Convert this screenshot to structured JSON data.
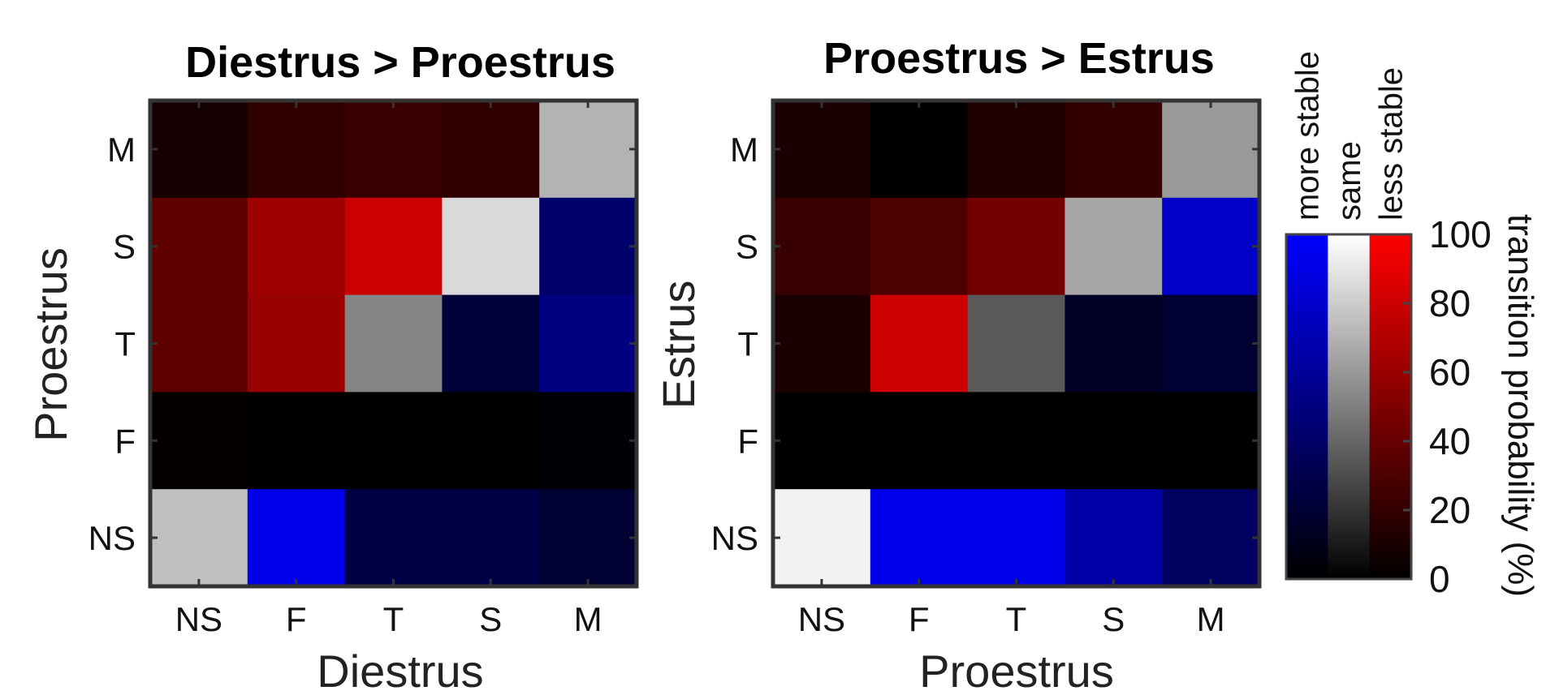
{
  "chart_data": [
    {
      "type": "heatmap",
      "title": "Diestrus > Proestrus",
      "xlabel": "Diestrus",
      "ylabel": "Proestrus",
      "x_categories": [
        "NS",
        "F",
        "T",
        "S",
        "M"
      ],
      "y_categories_top_to_bottom": [
        "M",
        "S",
        "T",
        "F",
        "NS"
      ],
      "cells_top_to_bottom": [
        [
          {
            "cat": "less",
            "v": 8
          },
          {
            "cat": "less",
            "v": 18
          },
          {
            "cat": "less",
            "v": 22
          },
          {
            "cat": "less",
            "v": 18
          },
          {
            "cat": "same",
            "v": 70
          }
        ],
        [
          {
            "cat": "less",
            "v": 38
          },
          {
            "cat": "less",
            "v": 62
          },
          {
            "cat": "less",
            "v": 80
          },
          {
            "cat": "same",
            "v": 85
          },
          {
            "cat": "more",
            "v": 42
          }
        ],
        [
          {
            "cat": "less",
            "v": 36
          },
          {
            "cat": "less",
            "v": 60
          },
          {
            "cat": "same",
            "v": 52
          },
          {
            "cat": "more",
            "v": 22
          },
          {
            "cat": "more",
            "v": 50
          }
        ],
        [
          {
            "cat": "less",
            "v": 2
          },
          {
            "cat": "less",
            "v": 1
          },
          {
            "cat": "less",
            "v": 1
          },
          {
            "cat": "less",
            "v": 1
          },
          {
            "cat": "more",
            "v": 2
          }
        ],
        [
          {
            "cat": "same",
            "v": 75
          },
          {
            "cat": "more",
            "v": 92
          },
          {
            "cat": "more",
            "v": 28
          },
          {
            "cat": "more",
            "v": 28
          },
          {
            "cat": "more",
            "v": 20
          }
        ]
      ]
    },
    {
      "type": "heatmap",
      "title": "Proestrus > Estrus",
      "xlabel": "Proestrus",
      "ylabel": "Estrus",
      "x_categories": [
        "NS",
        "F",
        "T",
        "S",
        "M"
      ],
      "y_categories_top_to_bottom": [
        "M",
        "S",
        "T",
        "F",
        "NS"
      ],
      "cells_top_to_bottom": [
        [
          {
            "cat": "less",
            "v": 10
          },
          {
            "cat": "less",
            "v": 0
          },
          {
            "cat": "less",
            "v": 12
          },
          {
            "cat": "less",
            "v": 20
          },
          {
            "cat": "same",
            "v": 60
          }
        ],
        [
          {
            "cat": "less",
            "v": 22
          },
          {
            "cat": "less",
            "v": 30
          },
          {
            "cat": "less",
            "v": 45
          },
          {
            "cat": "same",
            "v": 65
          },
          {
            "cat": "more",
            "v": 78
          }
        ],
        [
          {
            "cat": "less",
            "v": 10
          },
          {
            "cat": "less",
            "v": 80
          },
          {
            "cat": "same",
            "v": 35
          },
          {
            "cat": "more",
            "v": 15
          },
          {
            "cat": "more",
            "v": 20
          }
        ],
        [
          {
            "cat": "less",
            "v": 0
          },
          {
            "cat": "less",
            "v": 0
          },
          {
            "cat": "less",
            "v": 0
          },
          {
            "cat": "less",
            "v": 0
          },
          {
            "cat": "less",
            "v": 0
          }
        ],
        [
          {
            "cat": "same",
            "v": 95
          },
          {
            "cat": "more",
            "v": 92
          },
          {
            "cat": "more",
            "v": 92
          },
          {
            "cat": "more",
            "v": 65
          },
          {
            "cat": "more",
            "v": 38
          }
        ]
      ]
    }
  ],
  "colorbar": {
    "columns": [
      {
        "key": "more",
        "label": "more stable",
        "color": "#0000ff"
      },
      {
        "key": "same",
        "label": "same",
        "color": "#ffffff"
      },
      {
        "key": "less",
        "label": "less stable",
        "color": "#ff0000"
      }
    ],
    "ticks": [
      0,
      20,
      40,
      60,
      80,
      100
    ],
    "tick_labels": [
      "0",
      "20",
      "40",
      "60",
      "80",
      "100"
    ],
    "range": [
      0,
      100
    ],
    "label": "transition probability (%)"
  }
}
